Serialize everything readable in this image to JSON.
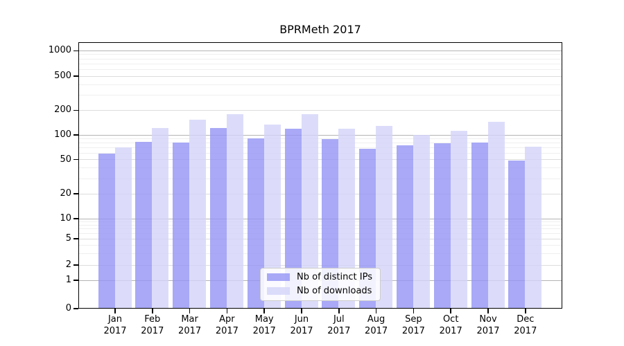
{
  "chart_data": {
    "type": "bar",
    "title": "BPRMeth 2017",
    "categories": [
      "Jan",
      "Feb",
      "Mar",
      "Apr",
      "May",
      "Jun",
      "Jul",
      "Aug",
      "Sep",
      "Oct",
      "Nov",
      "Dec"
    ],
    "category_year": "2017",
    "series": [
      {
        "name": "Nb of distinct IPs",
        "color": "#9494f5",
        "alpha": 0.8,
        "values": [
          62,
          85,
          84,
          126,
          95,
          125,
          92,
          70,
          78,
          82,
          84,
          51
        ]
      },
      {
        "name": "Nb of downloads",
        "color": "#d3d3f9",
        "alpha": 0.8,
        "values": [
          73,
          127,
          160,
          188,
          138,
          185,
          123,
          134,
          104,
          117,
          150,
          75
        ]
      }
    ],
    "y_ticks": [
      0,
      1,
      2,
      5,
      10,
      20,
      50,
      100,
      200,
      500,
      1000
    ],
    "ylim": [
      0,
      1400
    ],
    "yscale": "symlog",
    "grid": true,
    "legend_position": "lower center",
    "xlabel": "",
    "ylabel": ""
  }
}
